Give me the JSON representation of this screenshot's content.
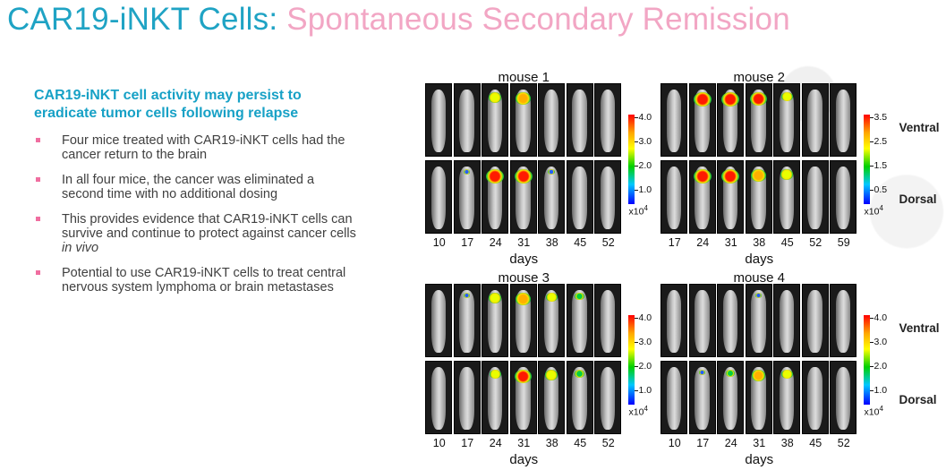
{
  "title": {
    "main": "CAR19-iNKT Cells:",
    "sub": "Spontaneous Secondary Remission"
  },
  "subhead": "CAR19-iNKT cell activity may persist to eradicate tumor cells following relapse",
  "bullets": [
    "Four mice treated with CAR19-iNKT cells had the cancer return to the brain",
    "In all four mice, the cancer was eliminated a second time with no additional dosing",
    "This provides evidence that CAR19-iNKT cells can survive and continue to protect against cancer cells",
    "Potential to use CAR19-iNKT cells to treat central nervous system lymphoma or brain metastases"
  ],
  "bullet3_emph": "in vivo",
  "colors": {
    "title_blue": "#1fa3c4",
    "title_pink": "#f2a6c4",
    "subhead_blue": "#17a1c6",
    "bullet_mark": "#f06ea0"
  },
  "panels": [
    {
      "title": "mouse 1",
      "days": [
        "10",
        "17",
        "24",
        "31",
        "38",
        "45",
        "52"
      ],
      "days_label": "days",
      "scale": {
        "ticks": [
          "4.0",
          "3.0",
          "2.0",
          "1.0"
        ],
        "unit_base": "x10",
        "unit_exp": "4"
      },
      "ventral_signal": [
        0,
        0,
        0.6,
        0.8,
        0,
        0,
        0
      ],
      "dorsal_signal": [
        0,
        0.1,
        1.0,
        1.0,
        0.15,
        0,
        0
      ]
    },
    {
      "title": "mouse 2",
      "days": [
        "17",
        "24",
        "31",
        "38",
        "45",
        "52",
        "59"
      ],
      "days_label": "days",
      "scale": {
        "ticks": [
          "3.5",
          "2.5",
          "1.5",
          "0.5"
        ],
        "unit_base": "x10",
        "unit_exp": "4"
      },
      "side_labels": {
        "ventral": "Ventral",
        "dorsal": "Dorsal"
      },
      "ventral_signal": [
        0,
        1.0,
        1.0,
        0.9,
        0.5,
        0,
        0
      ],
      "dorsal_signal": [
        0,
        1.0,
        1.0,
        0.8,
        0.6,
        0,
        0
      ]
    },
    {
      "title": "mouse 3",
      "days": [
        "10",
        "17",
        "24",
        "31",
        "38",
        "45",
        "52"
      ],
      "days_label": "days",
      "scale": {
        "ticks": [
          "4.0",
          "3.0",
          "2.0",
          "1.0"
        ],
        "unit_base": "x10",
        "unit_exp": "4"
      },
      "ventral_signal": [
        0,
        0.1,
        0.6,
        0.8,
        0.5,
        0.3,
        0
      ],
      "dorsal_signal": [
        0,
        0,
        0.5,
        0.9,
        0.6,
        0.4,
        0
      ]
    },
    {
      "title": "mouse 4",
      "days": [
        "10",
        "17",
        "24",
        "31",
        "38",
        "45",
        "52"
      ],
      "days_label": "days",
      "scale": {
        "ticks": [
          "4.0",
          "3.0",
          "2.0",
          "1.0"
        ],
        "unit_base": "x10",
        "unit_exp": "4"
      },
      "side_labels": {
        "ventral": "Ventral",
        "dorsal": "Dorsal"
      },
      "ventral_signal": [
        0,
        0,
        0,
        0.1,
        0,
        0,
        0
      ],
      "dorsal_signal": [
        0,
        0.1,
        0.3,
        0.7,
        0.5,
        0,
        0
      ]
    }
  ]
}
